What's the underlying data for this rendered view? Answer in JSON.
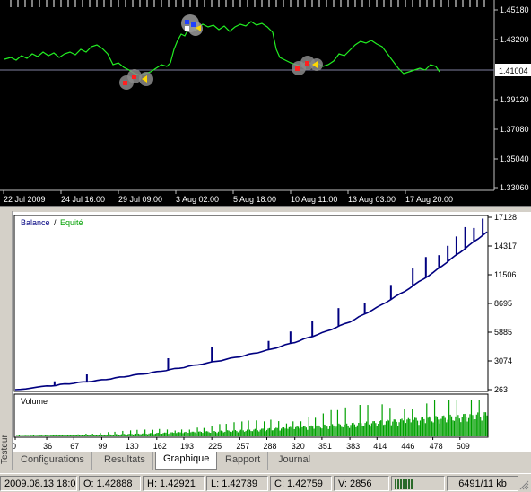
{
  "price_chart": {
    "price_labels": [
      "1.45180",
      "1.43200",
      "1.41004",
      "1.39120",
      "1.37080",
      "1.35040",
      "1.33060"
    ],
    "current_price": "1.41004",
    "time_labels": [
      "22 Jul 2009",
      "24 Jul 16:00",
      "29 Jul 09:00",
      "3 Aug 02:00",
      "5 Aug 18:00",
      "10 Aug 11:00",
      "13 Aug 03:00",
      "17 Aug 20:00"
    ],
    "colors": {
      "background": "#000000",
      "line": "#22ee22",
      "grid": "#c0c0c0",
      "current_line": "#8080a0"
    }
  },
  "tester": {
    "side_label": "Testeur",
    "legend": {
      "balance": "Balance",
      "separator": " / ",
      "equity": "Equité"
    },
    "volume_label": "Volume",
    "chart_data": {
      "type": "line",
      "title": "",
      "y_tick_labels": [
        "17128",
        "14317",
        "11506",
        "8695",
        "5885",
        "3074",
        "263"
      ],
      "x_tick_labels": [
        "0",
        "36",
        "67",
        "99",
        "130",
        "162",
        "193",
        "225",
        "257",
        "288",
        "320",
        "351",
        "383",
        "414",
        "446",
        "478",
        "509"
      ],
      "ylim": [
        263,
        17128
      ],
      "xlim": [
        0,
        540
      ],
      "series": [
        {
          "name": "Balance",
          "color": "#000080",
          "x": [
            0,
            36,
            67,
            99,
            130,
            162,
            193,
            225,
            257,
            288,
            320,
            351,
            383,
            414,
            446,
            478,
            509,
            540
          ],
          "y": [
            263,
            600,
            900,
            1200,
            1600,
            2000,
            2450,
            2950,
            3500,
            4100,
            4900,
            5800,
            6900,
            8300,
            9900,
            11700,
            13700,
            15700
          ]
        }
      ],
      "volume": {
        "color": "#00a000",
        "x": [
          0,
          36,
          67,
          99,
          130,
          162,
          193,
          225,
          257,
          288,
          320,
          351,
          383,
          414,
          446,
          478,
          509,
          540
        ],
        "values": [
          1,
          2,
          3,
          4,
          6,
          8,
          10,
          12,
          15,
          18,
          22,
          26,
          30,
          35,
          40,
          45,
          50,
          55
        ]
      }
    },
    "tabs": [
      {
        "label": "Configurations",
        "active": false
      },
      {
        "label": "Resultats",
        "active": false
      },
      {
        "label": "Graphique",
        "active": true
      },
      {
        "label": "Rapport",
        "active": false
      },
      {
        "label": "Journal",
        "active": false
      }
    ]
  },
  "status_bar": {
    "datetime": "2009.08.13 18:00",
    "open": "O: 1.42888",
    "high": "H: 1.42921",
    "low": "L: 1.42739",
    "close": "C: 1.42759",
    "volume": "V: 2856",
    "memory": "6491/11 kb"
  }
}
